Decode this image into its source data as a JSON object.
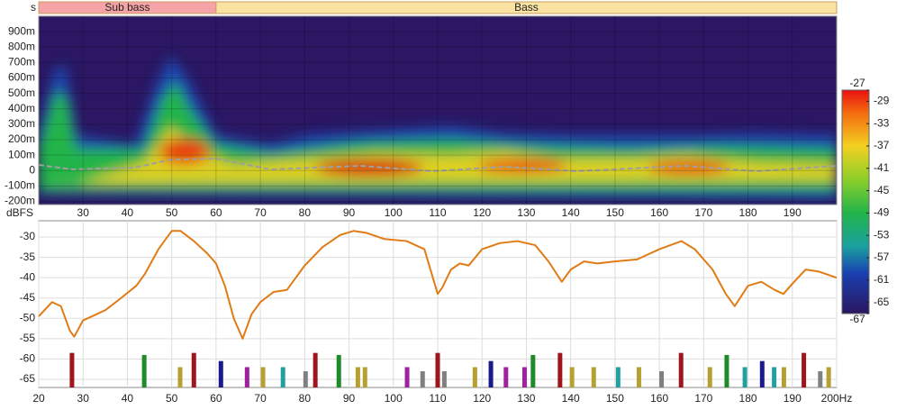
{
  "chart_data": [
    {
      "type": "spectrogram",
      "y_axis_label": "s",
      "bands": [
        {
          "label": "Sub bass",
          "range": [
            20,
            60
          ],
          "color": "#f5a3a6"
        },
        {
          "label": "Bass",
          "range": [
            60,
            200
          ],
          "color": "#f9e2a2"
        }
      ],
      "xlim": [
        20,
        200
      ],
      "xticks": [
        30,
        40,
        50,
        60,
        70,
        80,
        90,
        100,
        110,
        120,
        130,
        140,
        150,
        160,
        170,
        180,
        190
      ],
      "ylim": [
        -0.22,
        1.0
      ],
      "yticks": [
        {
          "value": 0.9,
          "label": "900m"
        },
        {
          "value": 0.8,
          "label": "800m"
        },
        {
          "value": 0.7,
          "label": "700m"
        },
        {
          "value": 0.6,
          "label": "600m"
        },
        {
          "value": 0.5,
          "label": "500m"
        },
        {
          "value": 0.4,
          "label": "400m"
        },
        {
          "value": 0.3,
          "label": "300m"
        },
        {
          "value": 0.2,
          "label": "200m"
        },
        {
          "value": 0.1,
          "label": "100m"
        },
        0,
        {
          "value": -0.1,
          "label": "-100m"
        },
        {
          "value": -0.2,
          "label": "-200m"
        }
      ],
      "colorbar": {
        "lim": [
          -67,
          -27
        ],
        "ticks": [
          -27,
          -29,
          -33,
          -37,
          -41,
          -45,
          -49,
          -53,
          -57,
          -61,
          -65,
          -67
        ]
      }
    },
    {
      "type": "line",
      "y_axis_label": "dBFS",
      "xlim": [
        20,
        200
      ],
      "xticks": [
        20,
        30,
        40,
        50,
        60,
        70,
        80,
        90,
        100,
        110,
        120,
        130,
        140,
        150,
        160,
        170,
        180,
        190,
        {
          "value": 200,
          "label": "200Hz"
        }
      ],
      "ylim": [
        -67,
        -26
      ],
      "yticks": [
        -30,
        -35,
        -40,
        -45,
        -50,
        -55,
        -60,
        -65
      ],
      "grid": true,
      "series": [
        {
          "color": "#e07b16",
          "x": [
            20,
            23,
            25,
            27,
            28,
            30,
            33,
            35,
            38,
            42,
            44,
            47,
            50,
            52,
            55,
            58,
            60,
            62,
            64,
            66,
            68,
            70,
            73,
            76,
            80,
            84,
            88,
            91,
            94,
            98,
            103,
            107,
            110,
            111,
            113,
            115,
            117,
            120,
            124,
            128,
            132,
            135,
            138,
            140,
            143,
            146,
            150,
            155,
            160,
            165,
            168,
            172,
            175,
            177,
            180,
            183,
            186,
            188,
            190,
            193,
            196,
            200
          ],
          "values": [
            -49.5,
            -46,
            -47,
            -53,
            -54.5,
            -50.5,
            -49,
            -48,
            -45.5,
            -42,
            -39,
            -33,
            -28.5,
            -28.5,
            -31,
            -34,
            -36.5,
            -42,
            -50,
            -55,
            -49,
            -46,
            -43.5,
            -43,
            -37,
            -32.5,
            -29.5,
            -28.5,
            -29,
            -30.5,
            -31,
            -33,
            -44,
            -42.5,
            -38,
            -36.5,
            -37,
            -33,
            -31.5,
            -31,
            -32,
            -36,
            -41,
            -38,
            -36,
            -36.5,
            -36,
            -35.5,
            -33,
            -31,
            -33,
            -38,
            -44,
            -47,
            -42,
            -41,
            -43,
            -44,
            -41.5,
            -38,
            -38.5,
            -40
          ]
        }
      ],
      "peaks": {
        "x": [
          27.5,
          43.8,
          51.9,
          55.0,
          61.1,
          67.0,
          70.6,
          75.1,
          80.2,
          82.4,
          87.7,
          92.0,
          93.6,
          103.1,
          106.6,
          110.0,
          111.5,
          118.4,
          122.0,
          125.4,
          129.6,
          131.5,
          137.6,
          140.3,
          145.2,
          150.7,
          155.4,
          160.5,
          164.9,
          171.4,
          175.2,
          179.3,
          183.2,
          185.9,
          188.1,
          192.6,
          196.3,
          198.2
        ],
        "values": [
          -58.5,
          -59,
          -62,
          -58.5,
          -60.5,
          -62,
          -62,
          -62,
          -63,
          -58.5,
          -59,
          -62,
          -62,
          -62,
          -63,
          -58.5,
          -63,
          -62,
          -60.5,
          -62,
          -62,
          -59,
          -58.5,
          -62,
          -62,
          -62,
          -62,
          -63,
          -58.5,
          -62,
          -59,
          -62,
          -60.5,
          -62,
          -62,
          -58.5,
          -63,
          -62
        ],
        "colors": [
          "#a0141e",
          "#1e8a2a",
          "#b8a030",
          "#a0141e",
          "#1a1a8c",
          "#a020a0",
          "#b8a030",
          "#20a0a0",
          "#808080",
          "#a0141e",
          "#1e8a2a",
          "#b8a030",
          "#b8a030",
          "#a020a0",
          "#808080",
          "#a0141e",
          "#808080",
          "#b8a030",
          "#1a1a8c",
          "#a020a0",
          "#a020a0",
          "#1e8a2a",
          "#a0141e",
          "#b8a030",
          "#b8a030",
          "#20a0a0",
          "#b8a030",
          "#808080",
          "#a0141e",
          "#b8a030",
          "#1e8a2a",
          "#20a0a0",
          "#1a1a8c",
          "#20a0a0",
          "#b8a030",
          "#a0141e",
          "#808080",
          "#b8a030"
        ]
      }
    }
  ]
}
